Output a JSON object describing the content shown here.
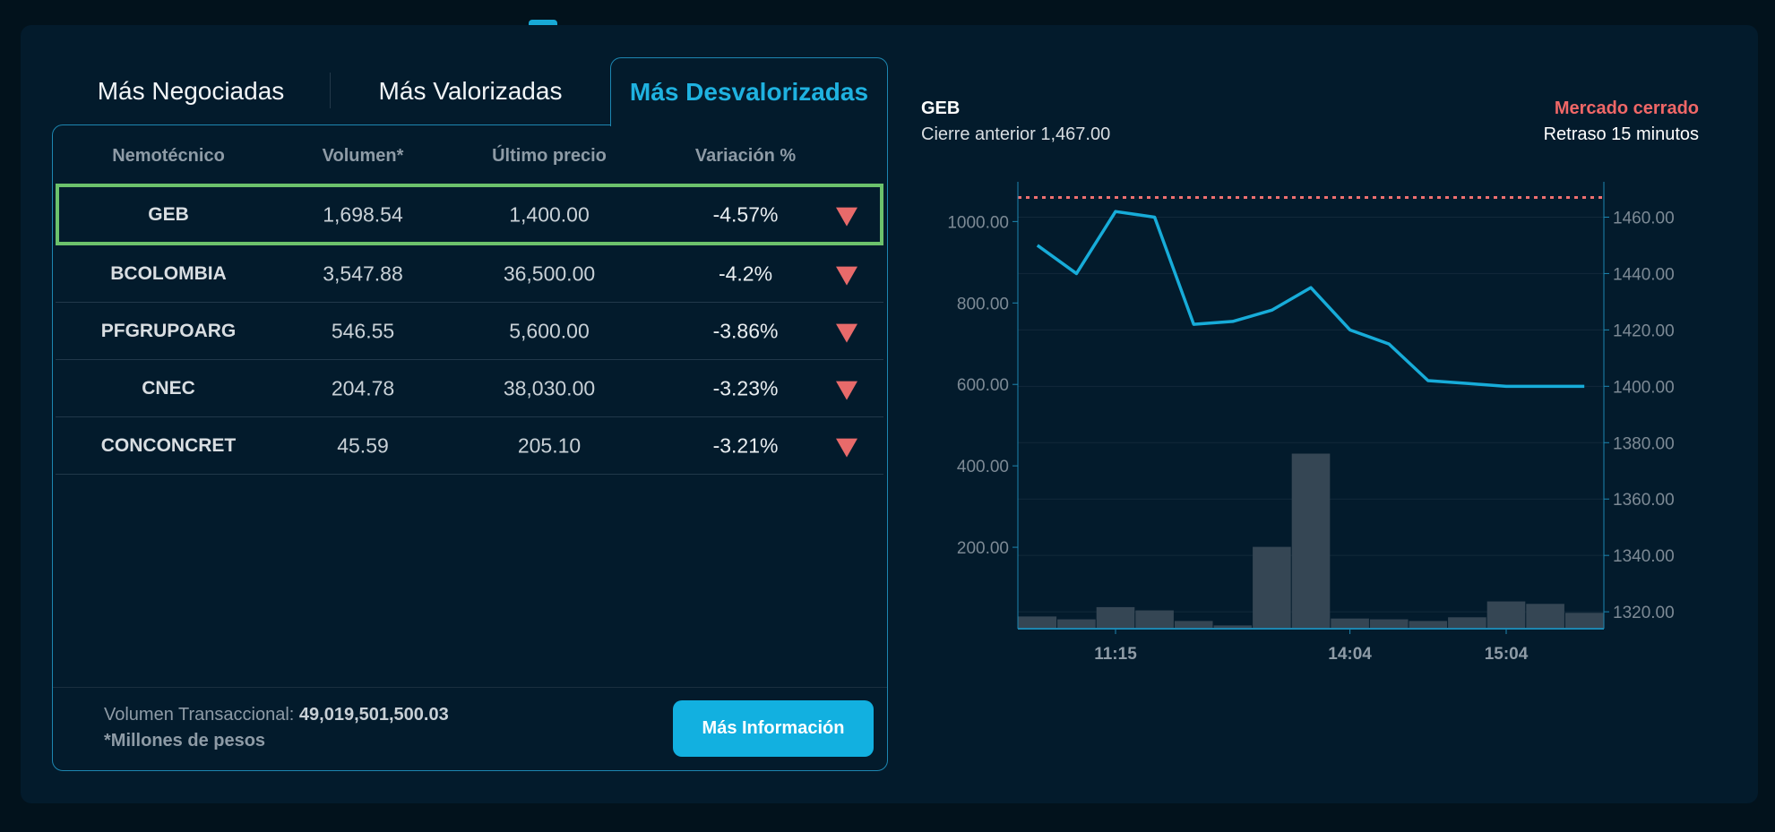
{
  "tabs": [
    {
      "label": "Más Negociadas",
      "active": false
    },
    {
      "label": "Más Valorizadas",
      "active": false
    },
    {
      "label": "Más Desvalorizadas",
      "active": true
    }
  ],
  "table": {
    "headers": [
      "Nemotécnico",
      "Volumen*",
      "Último precio",
      "Variación %"
    ],
    "rows": [
      {
        "symbol": "GEB",
        "volume": "1,698.54",
        "price": "1,400.00",
        "variation": "-4.57%",
        "direction": "down",
        "selected": true
      },
      {
        "symbol": "BCOLOMBIA",
        "volume": "3,547.88",
        "price": "36,500.00",
        "variation": "-4.2%",
        "direction": "down"
      },
      {
        "symbol": "PFGRUPOARG",
        "volume": "546.55",
        "price": "5,600.00",
        "variation": "-3.86%",
        "direction": "down"
      },
      {
        "symbol": "CNEC",
        "volume": "204.78",
        "price": "38,030.00",
        "variation": "-3.23%",
        "direction": "down"
      },
      {
        "symbol": "CONCONCRET",
        "volume": "45.59",
        "price": "205.10",
        "variation": "-3.21%",
        "direction": "down"
      }
    ]
  },
  "footer": {
    "volume_label": "Volumen Transaccional:",
    "volume_value": "49,019,501,500.03",
    "note": "*Millones de pesos",
    "button": "Más Información"
  },
  "chart_header": {
    "symbol": "GEB",
    "prev_close": "Cierre anterior 1,467.00",
    "market_status": "Mercado cerrado",
    "delay": "Retraso 15 minutos"
  },
  "colors": {
    "accent": "#12b0e0",
    "down": "#e86a6a",
    "selected": "#6cc26c",
    "bars": "#354654"
  },
  "chart_data": {
    "type": "line+bar",
    "x_ticks": [
      {
        "index": 2,
        "label": "11:15"
      },
      {
        "index": 8,
        "label": "14:04"
      },
      {
        "index": 12,
        "label": "15:04"
      }
    ],
    "price": [
      1450,
      1440,
      1462,
      1460,
      1422,
      1423,
      1427,
      1435,
      1420,
      1415,
      1402,
      1401,
      1400,
      1400,
      1400
    ],
    "volume": [
      30,
      23,
      53,
      45,
      19,
      8,
      201,
      430,
      25,
      23,
      19,
      28,
      67,
      61,
      39
    ],
    "previous_close": 1467,
    "left_axis": {
      "ticks": [
        "200.00",
        "400.00",
        "600.00",
        "800.00",
        "1000.00"
      ],
      "range": [
        0,
        1080
      ]
    },
    "right_axis": {
      "ticks": [
        "1320.00",
        "1340.00",
        "1360.00",
        "1380.00",
        "1400.00",
        "1420.00",
        "1440.00",
        "1460.00"
      ],
      "range": [
        1314,
        1470
      ]
    },
    "grid": true
  }
}
